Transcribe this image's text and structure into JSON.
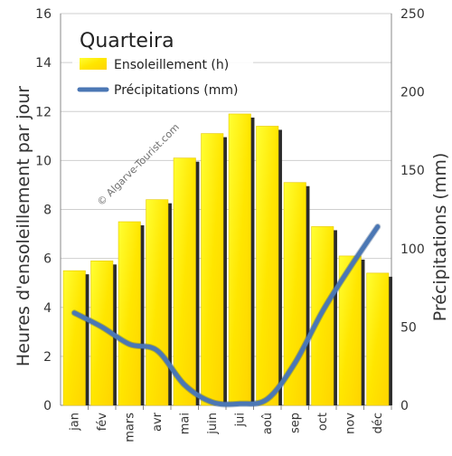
{
  "chart_data": {
    "type": "bar",
    "title": "Quarteira",
    "watermark": "© Algarve-Tourist.com",
    "categories": [
      "jan",
      "fév",
      "mars",
      "avr",
      "mai",
      "juin",
      "jui",
      "aoû",
      "sep",
      "oct",
      "nov",
      "déc"
    ],
    "series": [
      {
        "name": "Ensoleillement (h)",
        "type": "bar",
        "axis": "left",
        "color": "#ffee00",
        "values": [
          5.5,
          5.9,
          7.5,
          8.4,
          10.1,
          11.1,
          11.9,
          11.4,
          9.1,
          7.3,
          6.1,
          5.4
        ]
      },
      {
        "name": "Précipitations (mm)",
        "type": "line",
        "axis": "right",
        "color": "#4b77b4",
        "values": [
          59,
          50,
          39,
          35,
          13,
          2,
          1,
          4,
          27,
          60,
          88,
          114
        ]
      }
    ],
    "ylabel": "Heures d'ensoleillement par jour",
    "y2label": "Précipitations (mm)",
    "ylim": [
      0,
      16
    ],
    "y2lim": [
      0,
      250
    ],
    "yticks": [
      "0",
      "2",
      "4",
      "6",
      "8",
      "10",
      "12",
      "14",
      "16"
    ],
    "y2ticks": [
      "0",
      "50",
      "100",
      "150",
      "200",
      "250"
    ],
    "grid": true,
    "legend_position": "top-left"
  }
}
